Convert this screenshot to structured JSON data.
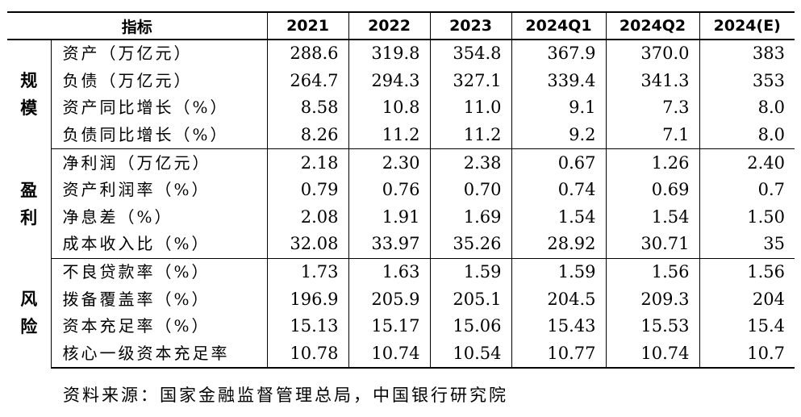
{
  "header": [
    "指标",
    "2021",
    "2022",
    "2023",
    "2024Q1",
    "2024Q2",
    "2024(E)"
  ],
  "groups": [
    {
      "category": [
        "规",
        "模"
      ],
      "rows": [
        {
          "name": "资产（万亿元）",
          "values": [
            "288.6",
            "319.8",
            "354.8",
            "367.9",
            "370.0",
            "383"
          ]
        },
        {
          "name": "负债（万亿元）",
          "values": [
            "264.7",
            "294.3",
            "327.1",
            "339.4",
            "341.3",
            "353"
          ]
        },
        {
          "name": "资产同比增长（%）",
          "values": [
            "8.58",
            "10.8",
            "11.0",
            "9.1",
            "7.3",
            "8.0"
          ]
        },
        {
          "name": "负债同比增长（%）",
          "values": [
            "8.26",
            "11.2",
            "11.2",
            "9.2",
            "7.1",
            "8.0"
          ]
        }
      ]
    },
    {
      "category": [
        "盈",
        "利"
      ],
      "rows": [
        {
          "name": "净利润（万亿元）",
          "values": [
            "2.18",
            "2.30",
            "2.38",
            "0.67",
            "1.26",
            "2.40"
          ]
        },
        {
          "name": "资产利润率（%）",
          "values": [
            "0.79",
            "0.76",
            "0.70",
            "0.74",
            "0.69",
            "0.7"
          ]
        },
        {
          "name": "净息差（%）",
          "values": [
            "2.08",
            "1.91",
            "1.69",
            "1.54",
            "1.54",
            "1.50"
          ]
        },
        {
          "name": "成本收入比（%）",
          "values": [
            "32.08",
            "33.97",
            "35.26",
            "28.92",
            "30.71",
            "35"
          ]
        }
      ]
    },
    {
      "category": [
        "风",
        "险"
      ],
      "rows": [
        {
          "name": "不良贷款率（%）",
          "values": [
            "1.73",
            "1.63",
            "1.59",
            "1.59",
            "1.56",
            "1.56"
          ]
        },
        {
          "name": "拨备覆盖率（%）",
          "values": [
            "196.9",
            "205.9",
            "205.1",
            "204.5",
            "209.3",
            "204"
          ]
        },
        {
          "name": "资本充足率（%）",
          "values": [
            "15.13",
            "15.17",
            "15.06",
            "15.43",
            "15.53",
            "15.4"
          ]
        },
        {
          "name": "核心一级资本充足率",
          "values": [
            "10.78",
            "10.74",
            "10.54",
            "10.77",
            "10.74",
            "10.7"
          ]
        }
      ]
    }
  ],
  "source": "资料来源：国家金融监督管理总局，中国银行研究院"
}
